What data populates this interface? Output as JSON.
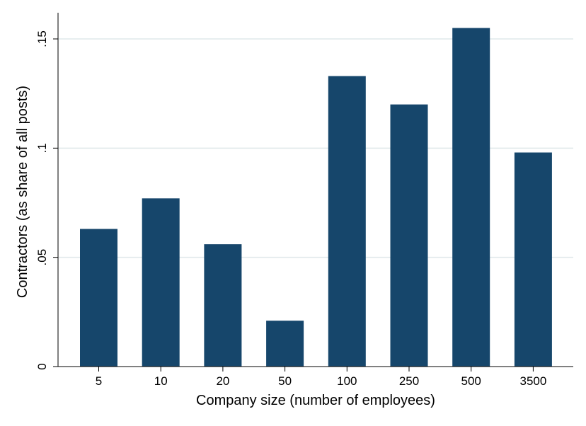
{
  "chart_data": {
    "type": "bar",
    "title": "",
    "xlabel": "Company size (number of employees)",
    "ylabel": "Contractors (as share of all posts)",
    "categories": [
      "5",
      "10",
      "20",
      "50",
      "100",
      "250",
      "500",
      "3500"
    ],
    "values": [
      0.063,
      0.077,
      0.056,
      0.021,
      0.133,
      0.12,
      0.155,
      0.098
    ],
    "ylim": [
      0,
      0.155
    ],
    "yticks": [
      0,
      0.05,
      0.1,
      0.15
    ],
    "ytick_labels": [
      "0",
      ".05",
      ".1",
      ".15"
    ],
    "grid": true,
    "legend": "none",
    "colors": {
      "bar": "#16466b",
      "grid": "#dfe8ea",
      "axis": "#000000"
    }
  }
}
